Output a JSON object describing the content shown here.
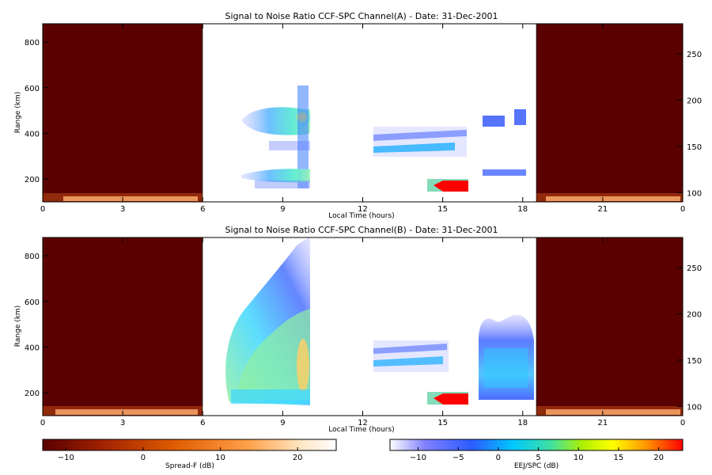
{
  "chart_data": [
    {
      "type": "heatmap",
      "title": "Signal to Noise Ratio CCF-SPC Channel(A) - Date: 31-Dec-2001",
      "xlabel": "Local Time (hours)",
      "ylabel": "Range (km)",
      "xlim": [
        0,
        24
      ],
      "ylim": [
        100,
        880
      ],
      "xticks": [
        "0",
        "3",
        "6",
        "9",
        "12",
        "15",
        "18",
        "21",
        "0"
      ],
      "yticks": [
        "200",
        "400",
        "600",
        "800"
      ],
      "right_axis_ticks": [
        "100",
        "150",
        "200",
        "250"
      ],
      "night_spans_hours": [
        [
          0,
          6
        ],
        [
          18.5,
          24
        ]
      ],
      "features": [
        {
          "name": "spread-f upper layer",
          "x": [
            7.5,
            10
          ],
          "y": [
            400,
            570
          ],
          "peak_db": 14
        },
        {
          "name": "spread-f lower layer",
          "x": [
            7.5,
            10
          ],
          "y": [
            175,
            235
          ],
          "peak_db": 5
        },
        {
          "name": "spread-f plume",
          "x": [
            9.5,
            10
          ],
          "y": [
            170,
            710
          ],
          "peak_db": 5
        },
        {
          "name": "afternoon echoes",
          "x": [
            12.5,
            16
          ],
          "y": [
            300,
            400
          ],
          "peak_db": 2
        },
        {
          "name": "EEJ echo",
          "x": [
            14.5,
            16
          ],
          "y": [
            140,
            190
          ],
          "peak_db": 22
        },
        {
          "name": "late upper echo",
          "x": [
            16.5,
            18.2
          ],
          "y": [
            410,
            500
          ],
          "peak_db": 0
        },
        {
          "name": "late lower echo",
          "x": [
            16.5,
            18.2
          ],
          "y": [
            195,
            230
          ],
          "peak_db": 0
        }
      ]
    },
    {
      "type": "heatmap",
      "title": "Signal to Noise Ratio CCF-SPC Channel(B) - Date: 31-Dec-2001",
      "xlabel": "Local Time (hours)",
      "ylabel": "Range (km)",
      "xlim": [
        0,
        24
      ],
      "ylim": [
        100,
        880
      ],
      "xticks": [
        "0",
        "3",
        "6",
        "9",
        "12",
        "15",
        "18",
        "21",
        "0"
      ],
      "yticks": [
        "200",
        "400",
        "600",
        "800"
      ],
      "right_axis_ticks": [
        "100",
        "150",
        "200",
        "250"
      ],
      "night_spans_hours": [
        [
          0,
          6
        ],
        [
          18.5,
          24
        ]
      ],
      "features": [
        {
          "name": "spread-f plume",
          "x": [
            6.5,
            10
          ],
          "y": [
            150,
            880
          ],
          "peak_db": 14
        },
        {
          "name": "afternoon echoes",
          "x": [
            12.5,
            16
          ],
          "y": [
            300,
            400
          ],
          "peak_db": 2
        },
        {
          "name": "EEJ echo",
          "x": [
            14.5,
            16
          ],
          "y": [
            140,
            190
          ],
          "peak_db": 22
        },
        {
          "name": "late echo",
          "x": [
            16.5,
            18.5
          ],
          "y": [
            170,
            520
          ],
          "peak_db": 0
        }
      ]
    }
  ],
  "colorbars": [
    {
      "label": "Spread-F (dB)",
      "ticks": [
        "-10",
        "0",
        "10",
        "20"
      ],
      "range": [
        -13,
        25
      ],
      "colors": [
        "#5a0000",
        "#a02200",
        "#e05c00",
        "#ffa04a",
        "#ffe6c4",
        "#ffffff"
      ]
    },
    {
      "label": "EEJ/SPC (dB)",
      "ticks": [
        "-10",
        "-5",
        "0",
        "5",
        "10",
        "15",
        "20"
      ],
      "range": [
        -13.5,
        23
      ],
      "colors": [
        "#ffffff",
        "#4444ff",
        "#00c8ff",
        "#9ae800",
        "#ffff00",
        "#ff9000",
        "#ff0000"
      ]
    }
  ]
}
